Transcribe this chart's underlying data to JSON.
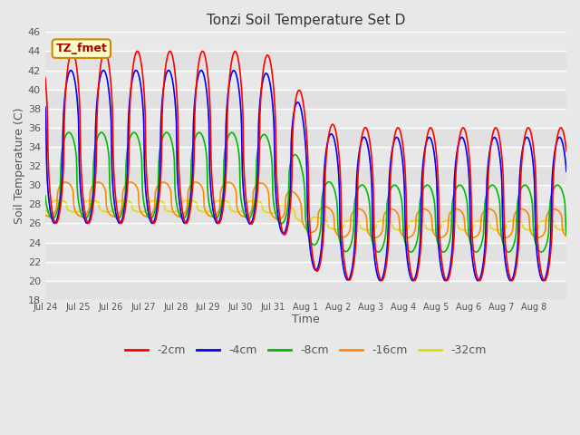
{
  "title": "Tonzi Soil Temperature Set D",
  "xlabel": "Time",
  "ylabel": "Soil Temperature (C)",
  "ylim": [
    18,
    46
  ],
  "yticks": [
    18,
    20,
    22,
    24,
    26,
    28,
    30,
    32,
    34,
    36,
    38,
    40,
    42,
    44,
    46
  ],
  "series_colors": [
    "#ff0000",
    "#0000ff",
    "#00bb00",
    "#ff8800",
    "#dddd00"
  ],
  "series_labels": [
    "-2cm",
    "-4cm",
    "-8cm",
    "-16cm",
    "-32cm"
  ],
  "legend_label": "TZ_fmet",
  "legend_label_color": "#aa0000",
  "legend_box_facecolor": "#ffffcc",
  "legend_box_edgecolor": "#cc8800",
  "tick_labels": [
    "Jul 24",
    "Jul 25",
    "Jul 26",
    "Jul 27",
    "Jul 28",
    "Jul 29",
    "Jul 30",
    "Jul 31",
    "Aug 1",
    "Aug 2",
    "Aug 3",
    "Aug 4",
    "Aug 5",
    "Aug 6",
    "Aug 7",
    "Aug 8"
  ],
  "background_color": "#e8e8e8",
  "grid_color": "#ffffff",
  "days": 16,
  "pts_per_day": 48
}
